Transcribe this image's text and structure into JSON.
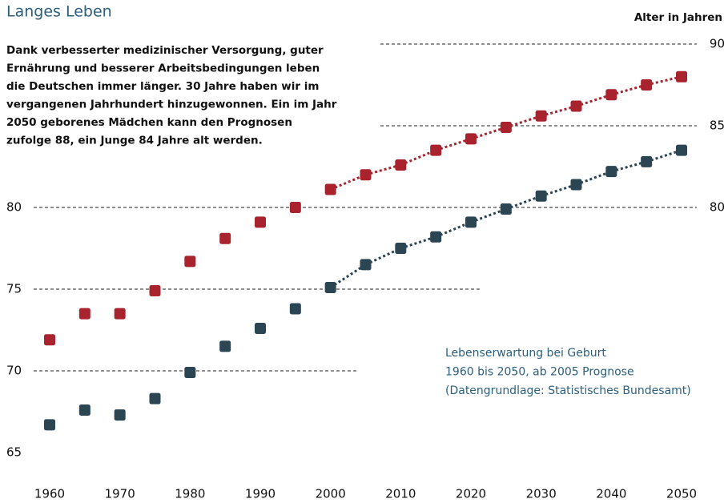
{
  "chart_data": {
    "type": "scatter",
    "title": "Langes Leben",
    "description": [
      "Dank verbesserter medizinischer Versorgung, guter",
      "Ernährung und besserer Arbeitsbedingungen leben",
      "die Deutschen immer länger. 30 Jahre haben wir im",
      "vergangenen Jahrhundert hinzugewonnen. Ein im Jahr",
      "2050 geborenes Mädchen kann den Prognosen",
      "zufolge 88, ein Junge 84 Jahre alt werden."
    ],
    "y_axis_label": "Alter in Jahren",
    "annotation": [
      "Lebenserwartung bei Geburt",
      "1960 bis 2050, ab 2005 Prognose",
      "(Datengrundlage: Statistisches Bundesamt)"
    ],
    "x": [
      1960,
      1965,
      1970,
      1975,
      1980,
      1985,
      1990,
      1995,
      2000,
      2005,
      2010,
      2015,
      2020,
      2025,
      2030,
      2035,
      2040,
      2045,
      2050
    ],
    "xlim": [
      1960,
      2050
    ],
    "xticks": [
      1960,
      1970,
      1980,
      1990,
      2000,
      2010,
      2020,
      2030,
      2040,
      2050
    ],
    "ylim": [
      65,
      90
    ],
    "yticks": [
      65,
      70,
      75,
      80
    ],
    "y2lim": [
      65,
      90
    ],
    "y2ticks": [
      80,
      85,
      90
    ],
    "series": [
      {
        "color": "#a8232e",
        "values": [
          71.9,
          73.5,
          73.5,
          74.9,
          76.7,
          78.1,
          79.1,
          80.0,
          81.1,
          82.0,
          82.6,
          83.5,
          84.2,
          84.9,
          85.6,
          86.2,
          86.9,
          87.5,
          88.0
        ]
      },
      {
        "color": "#2c4553",
        "values": [
          66.7,
          67.6,
          67.3,
          68.3,
          69.9,
          71.5,
          72.6,
          73.8,
          75.1,
          76.5,
          77.5,
          78.2,
          79.1,
          79.9,
          80.7,
          81.4,
          82.2,
          82.8,
          83.5
        ]
      }
    ]
  }
}
